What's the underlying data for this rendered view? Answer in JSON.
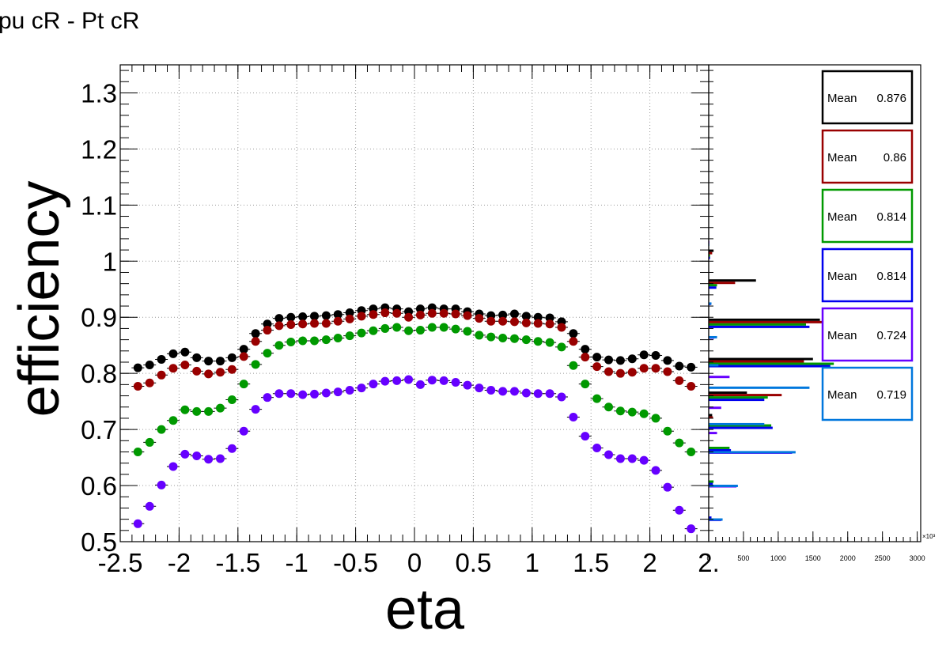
{
  "title": "pu cR - Pt cR",
  "chart_data": [
    {
      "type": "scatter",
      "xlabel": "eta",
      "ylabel": "efficiency",
      "xlim": [
        -2.5,
        2.5
      ],
      "ylim": [
        0.5,
        1.35
      ],
      "x_ticks": [
        "-2.5",
        "-2",
        "-1.5",
        "-1",
        "-0.5",
        "0",
        "0.5",
        "1",
        "1.5",
        "2",
        "2."
      ],
      "y_ticks": [
        "0.5",
        "0.6",
        "0.7",
        "0.8",
        "0.9",
        "1",
        "1.1",
        "1.2",
        "1.3"
      ],
      "grid": true,
      "x": [
        -2.35,
        -2.25,
        -2.15,
        -2.05,
        -1.95,
        -1.85,
        -1.75,
        -1.65,
        -1.55,
        -1.45,
        -1.35,
        -1.25,
        -1.15,
        -1.05,
        -0.95,
        -0.85,
        -0.75,
        -0.65,
        -0.55,
        -0.45,
        -0.35,
        -0.25,
        -0.15,
        -0.05,
        0.05,
        0.15,
        0.25,
        0.35,
        0.45,
        0.55,
        0.65,
        0.75,
        0.85,
        0.95,
        1.05,
        1.15,
        1.25,
        1.35,
        1.45,
        1.55,
        1.65,
        1.75,
        1.85,
        1.95,
        2.05,
        2.15,
        2.25,
        2.35
      ],
      "series": [
        {
          "color": "#000000",
          "values": [
            0.81,
            0.815,
            0.825,
            0.835,
            0.838,
            0.828,
            0.822,
            0.822,
            0.828,
            0.843,
            0.871,
            0.888,
            0.898,
            0.9,
            0.901,
            0.902,
            0.903,
            0.905,
            0.908,
            0.912,
            0.915,
            0.917,
            0.915,
            0.91,
            0.915,
            0.917,
            0.915,
            0.915,
            0.91,
            0.906,
            0.903,
            0.904,
            0.906,
            0.902,
            0.9,
            0.899,
            0.892,
            0.871,
            0.843,
            0.829,
            0.824,
            0.823,
            0.826,
            0.833,
            0.832,
            0.823,
            0.813,
            0.811
          ]
        },
        {
          "color": "#990000",
          "values": [
            0.777,
            0.783,
            0.797,
            0.809,
            0.815,
            0.804,
            0.799,
            0.802,
            0.807,
            0.83,
            0.857,
            0.877,
            0.885,
            0.887,
            0.888,
            0.889,
            0.889,
            0.893,
            0.897,
            0.902,
            0.905,
            0.908,
            0.907,
            0.9,
            0.904,
            0.907,
            0.907,
            0.906,
            0.903,
            0.898,
            0.893,
            0.893,
            0.892,
            0.89,
            0.889,
            0.888,
            0.882,
            0.857,
            0.829,
            0.812,
            0.803,
            0.8,
            0.802,
            0.809,
            0.809,
            0.803,
            0.787,
            0.777
          ]
        },
        {
          "color": "#009900",
          "values": [
            0.66,
            0.677,
            0.7,
            0.716,
            0.735,
            0.732,
            0.732,
            0.738,
            0.753,
            0.781,
            0.816,
            0.836,
            0.85,
            0.856,
            0.858,
            0.858,
            0.86,
            0.863,
            0.867,
            0.872,
            0.876,
            0.88,
            0.882,
            0.876,
            0.877,
            0.882,
            0.882,
            0.879,
            0.875,
            0.868,
            0.865,
            0.863,
            0.862,
            0.86,
            0.857,
            0.855,
            0.847,
            0.814,
            0.781,
            0.755,
            0.74,
            0.733,
            0.731,
            0.728,
            0.72,
            0.697,
            0.676,
            0.66
          ]
        },
        {
          "color": "#6600ff",
          "values": [
            0.532,
            0.563,
            0.601,
            0.634,
            0.656,
            0.653,
            0.647,
            0.648,
            0.666,
            0.697,
            0.736,
            0.757,
            0.764,
            0.764,
            0.762,
            0.763,
            0.765,
            0.767,
            0.77,
            0.774,
            0.781,
            0.786,
            0.787,
            0.789,
            0.78,
            0.788,
            0.787,
            0.784,
            0.779,
            0.774,
            0.77,
            0.768,
            0.768,
            0.765,
            0.764,
            0.764,
            0.758,
            0.722,
            0.688,
            0.667,
            0.655,
            0.648,
            0.648,
            0.645,
            0.627,
            0.597,
            0.556,
            0.523
          ]
        }
      ]
    },
    {
      "type": "bar",
      "orientation": "horizontal",
      "x_ticks": [
        "0",
        "500",
        "1000",
        "1500",
        "2000",
        "2500",
        "3000"
      ],
      "x_exponent": "×10³",
      "xlim": [
        0,
        3050
      ],
      "series": [
        {
          "color": "#000000",
          "bars": [
            [
              1.008,
              70
            ],
            [
              0.955,
              680
            ],
            [
              0.885,
              1600
            ],
            [
              0.815,
              1500
            ],
            [
              0.755,
              550
            ],
            [
              0.715,
              50
            ]
          ],
          "stat_label": "Mean",
          "stat_value": "0.876"
        },
        {
          "color": "#990000",
          "bars": [
            [
              1.008,
              50
            ],
            [
              0.955,
              380
            ],
            [
              0.885,
              1900
            ],
            [
              0.815,
              1370
            ],
            [
              0.755,
              1050
            ],
            [
              0.715,
              60
            ]
          ],
          "stat_label": "Mean",
          "stat_value": "0.86"
        },
        {
          "color": "#009900",
          "bars": [
            [
              1.008,
              20
            ],
            [
              0.955,
              120
            ],
            [
              0.885,
              1400
            ],
            [
              0.815,
              1800
            ],
            [
              0.755,
              850
            ],
            [
              0.705,
              900
            ],
            [
              0.665,
              300
            ],
            [
              0.605,
              70
            ]
          ],
          "stat_label": "Mean",
          "stat_value": "0.814"
        },
        {
          "color": "#0000ee",
          "bars": [
            [
              1.008,
              20
            ],
            [
              0.955,
              110
            ],
            [
              0.885,
              1450
            ],
            [
              0.815,
              1750
            ],
            [
              0.755,
              800
            ],
            [
              0.705,
              920
            ],
            [
              0.665,
              320
            ],
            [
              0.605,
              60
            ],
            [
              0.545,
              40
            ]
          ],
          "stat_label": "Mean",
          "stat_value": "0.814"
        },
        {
          "color": "#6600ff",
          "bars": [
            [
              1.04,
              10
            ],
            [
              0.93,
              30
            ],
            [
              0.87,
              80
            ],
            [
              0.8,
              300
            ],
            [
              0.745,
              180
            ],
            [
              0.7,
              120
            ],
            [
              0.665,
              1200
            ],
            [
              0.605,
              400
            ],
            [
              0.545,
              180
            ]
          ],
          "stat_label": "Mean",
          "stat_value": "0.724"
        },
        {
          "color": "#0077dd",
          "bars": [
            [
              1.04,
              10
            ],
            [
              0.935,
              40
            ],
            [
              0.875,
              120
            ],
            [
              0.825,
              140
            ],
            [
              0.785,
              1450
            ],
            [
              0.72,
              800
            ],
            [
              0.67,
              1250
            ],
            [
              0.61,
              420
            ],
            [
              0.55,
              200
            ]
          ],
          "stat_label": "Mean",
          "stat_value": "0.719"
        }
      ]
    }
  ]
}
